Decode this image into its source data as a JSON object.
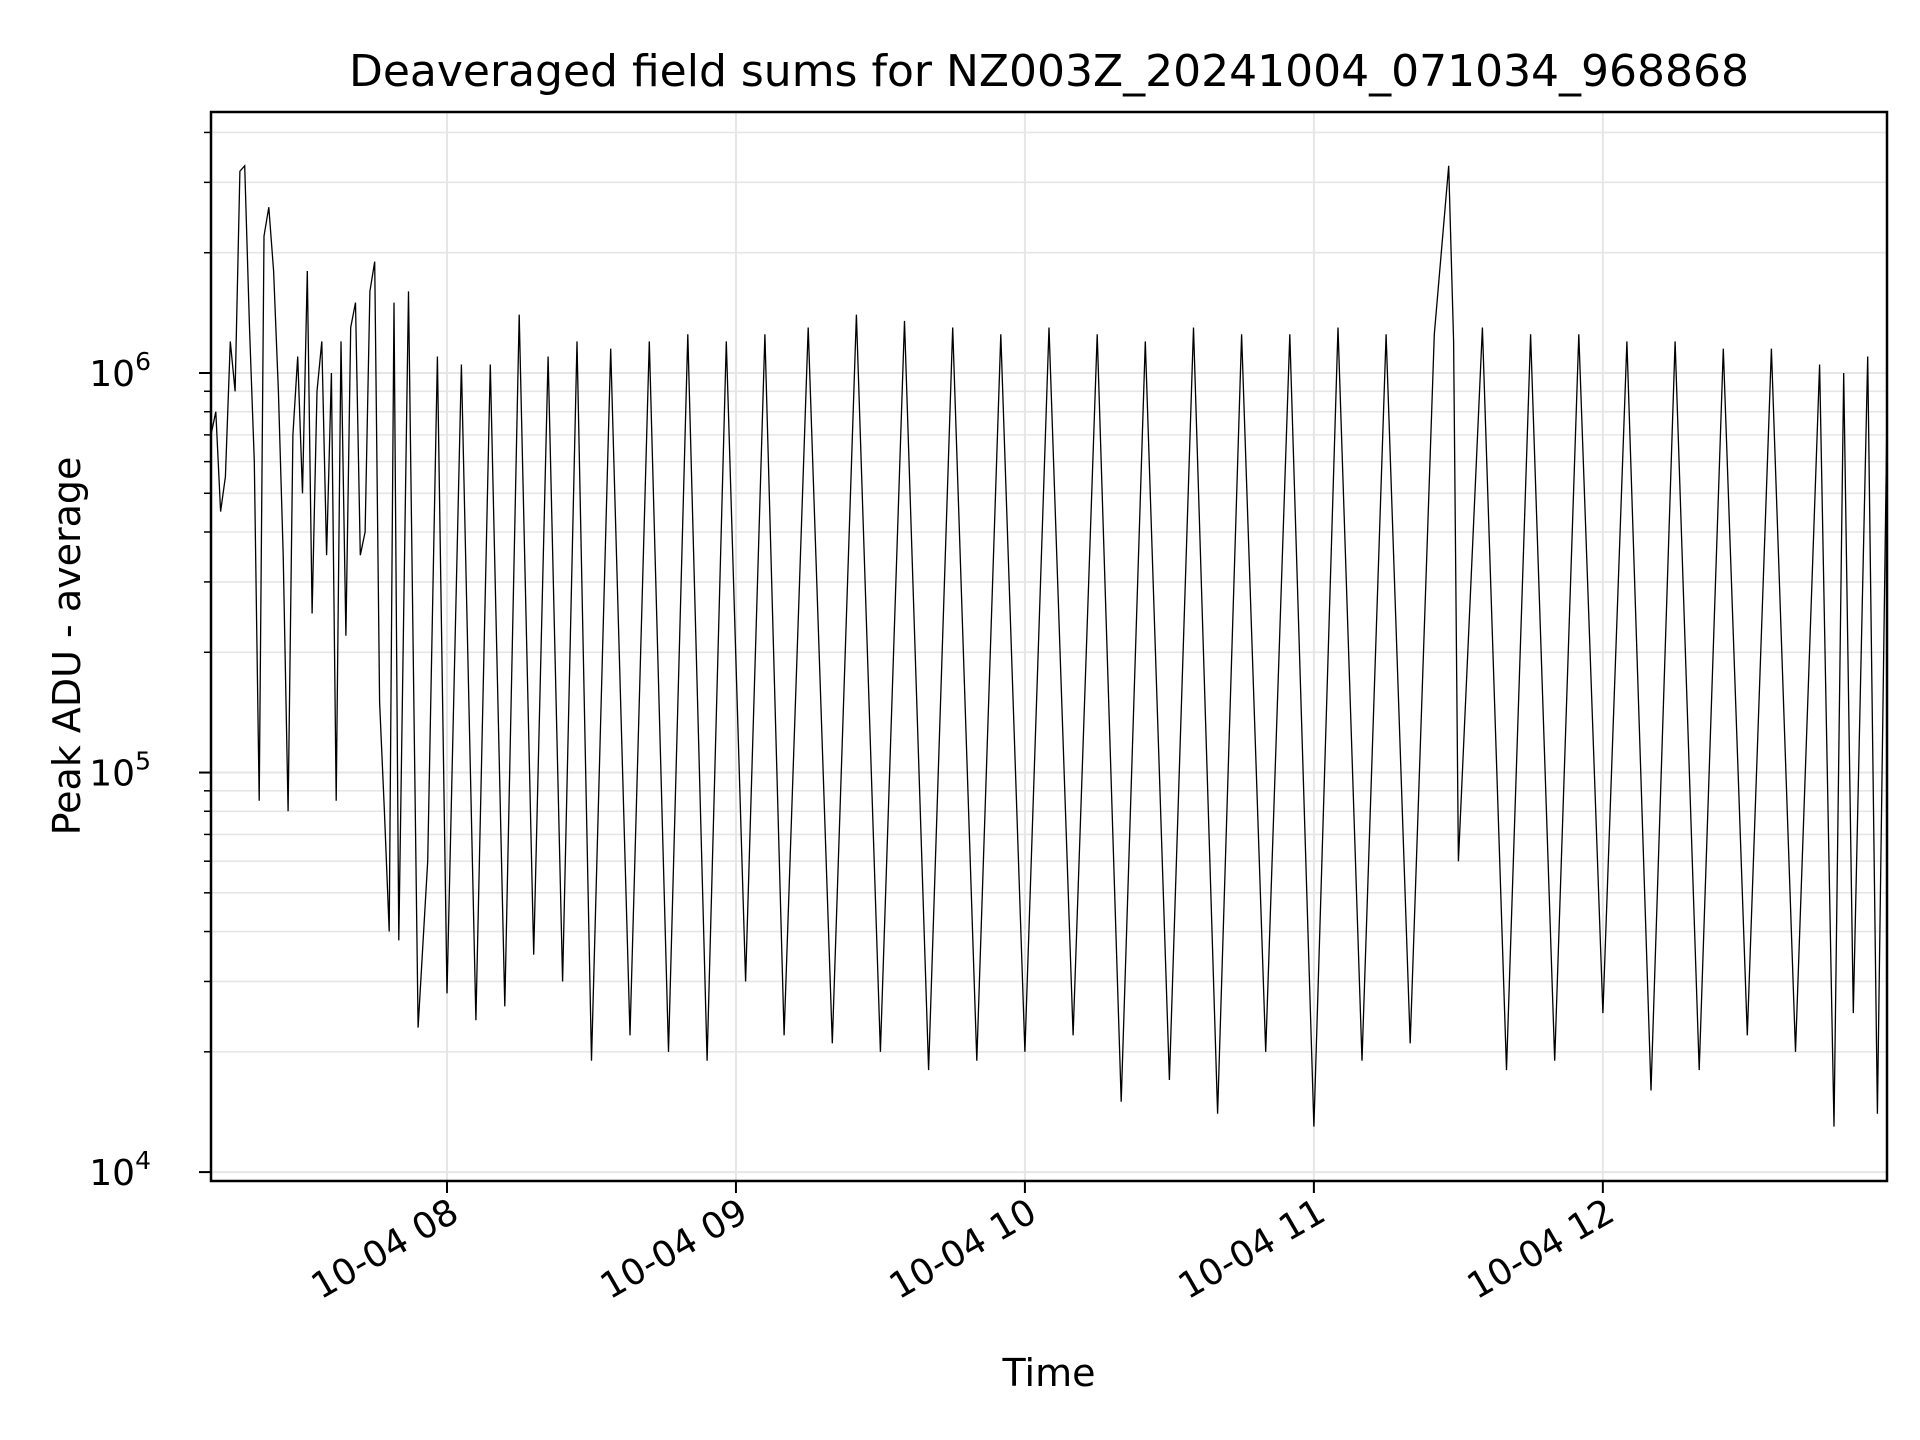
{
  "chart_data": {
    "type": "line",
    "title": "Deaveraged field sums for NZ003Z_20241004_071034_968868",
    "xlabel": "Time",
    "ylabel": "Peak ADU - average",
    "yscale": "log",
    "ylim": [
      9500,
      4500000
    ],
    "xlim": [
      "2024-10-04 07:11",
      "2024-10-04 12:59"
    ],
    "grid": true,
    "line_color": "#000000",
    "grid_color": "#e6e6e6",
    "y_ticks": [
      {
        "value": 10000,
        "base": "10",
        "exp": "4"
      },
      {
        "value": 100000,
        "base": "10",
        "exp": "5"
      },
      {
        "value": 1000000,
        "base": "10",
        "exp": "6"
      }
    ],
    "x_ticks": [
      {
        "value": "2024-10-04 08:00",
        "label": "10-04 08"
      },
      {
        "value": "2024-10-04 09:00",
        "label": "10-04 09"
      },
      {
        "value": "2024-10-04 10:00",
        "label": "10-04 10"
      },
      {
        "value": "2024-10-04 11:00",
        "label": "10-04 11"
      },
      {
        "value": "2024-10-04 12:00",
        "label": "10-04 12"
      }
    ],
    "series": [
      {
        "x": [
          "2024-10-04 07:11",
          "2024-10-04 07:12",
          "2024-10-04 07:13",
          "2024-10-04 07:14",
          "2024-10-04 07:15",
          "2024-10-04 07:16",
          "2024-10-04 07:17",
          "2024-10-04 07:18",
          "2024-10-04 07:19",
          "2024-10-04 07:20",
          "2024-10-04 07:21",
          "2024-10-04 07:22",
          "2024-10-04 07:23",
          "2024-10-04 07:24",
          "2024-10-04 07:25",
          "2024-10-04 07:26",
          "2024-10-04 07:27",
          "2024-10-04 07:28",
          "2024-10-04 07:29",
          "2024-10-04 07:30",
          "2024-10-04 07:31",
          "2024-10-04 07:32",
          "2024-10-04 07:33",
          "2024-10-04 07:34",
          "2024-10-04 07:35",
          "2024-10-04 07:36",
          "2024-10-04 07:37",
          "2024-10-04 07:38",
          "2024-10-04 07:39",
          "2024-10-04 07:40",
          "2024-10-04 07:41",
          "2024-10-04 07:42",
          "2024-10-04 07:43",
          "2024-10-04 07:44",
          "2024-10-04 07:45",
          "2024-10-04 07:46",
          "2024-10-04 07:47",
          "2024-10-04 07:48",
          "2024-10-04 07:49",
          "2024-10-04 07:50",
          "2024-10-04 07:52",
          "2024-10-04 07:54",
          "2024-10-04 07:56",
          "2024-10-04 07:58",
          "2024-10-04 08:00",
          "2024-10-04 08:03",
          "2024-10-04 08:06",
          "2024-10-04 08:09",
          "2024-10-04 08:12",
          "2024-10-04 08:15",
          "2024-10-04 08:18",
          "2024-10-04 08:21",
          "2024-10-04 08:24",
          "2024-10-04 08:27",
          "2024-10-04 08:30",
          "2024-10-04 08:34",
          "2024-10-04 08:38",
          "2024-10-04 08:42",
          "2024-10-04 08:46",
          "2024-10-04 08:50",
          "2024-10-04 08:54",
          "2024-10-04 08:58",
          "2024-10-04 09:02",
          "2024-10-04 09:06",
          "2024-10-04 09:10",
          "2024-10-04 09:15",
          "2024-10-04 09:20",
          "2024-10-04 09:25",
          "2024-10-04 09:30",
          "2024-10-04 09:35",
          "2024-10-04 09:40",
          "2024-10-04 09:45",
          "2024-10-04 09:50",
          "2024-10-04 09:55",
          "2024-10-04 10:00",
          "2024-10-04 10:05",
          "2024-10-04 10:10",
          "2024-10-04 10:15",
          "2024-10-04 10:20",
          "2024-10-04 10:25",
          "2024-10-04 10:30",
          "2024-10-04 10:35",
          "2024-10-04 10:40",
          "2024-10-04 10:45",
          "2024-10-04 10:50",
          "2024-10-04 10:55",
          "2024-10-04 11:00",
          "2024-10-04 11:05",
          "2024-10-04 11:10",
          "2024-10-04 11:15",
          "2024-10-04 11:20",
          "2024-10-04 11:25",
          "2024-10-04 11:28",
          "2024-10-04 11:29",
          "2024-10-04 11:30",
          "2024-10-04 11:35",
          "2024-10-04 11:40",
          "2024-10-04 11:45",
          "2024-10-04 11:50",
          "2024-10-04 11:55",
          "2024-10-04 12:00",
          "2024-10-04 12:05",
          "2024-10-04 12:10",
          "2024-10-04 12:15",
          "2024-10-04 12:20",
          "2024-10-04 12:25",
          "2024-10-04 12:30",
          "2024-10-04 12:35",
          "2024-10-04 12:40",
          "2024-10-04 12:45",
          "2024-10-04 12:48",
          "2024-10-04 12:50",
          "2024-10-04 12:52",
          "2024-10-04 12:55",
          "2024-10-04 12:57",
          "2024-10-04 12:59"
        ],
        "y": [
          700000,
          800000,
          450000,
          550000,
          1200000,
          900000,
          3200000,
          3300000,
          1300000,
          600000,
          85000,
          2200000,
          2600000,
          1800000,
          900000,
          350000,
          80000,
          700000,
          1100000,
          500000,
          1800000,
          250000,
          900000,
          1200000,
          350000,
          1000000,
          85000,
          1200000,
          220000,
          1300000,
          1500000,
          350000,
          400000,
          1600000,
          1900000,
          150000,
          80000,
          40000,
          1500000,
          38000,
          1600000,
          23000,
          60000,
          1100000,
          28000,
          1050000,
          24000,
          1050000,
          26000,
          1400000,
          35000,
          1100000,
          30000,
          1200000,
          19000,
          1150000,
          22000,
          1200000,
          20000,
          1250000,
          19000,
          1200000,
          30000,
          1250000,
          22000,
          1300000,
          21000,
          1400000,
          20000,
          1350000,
          18000,
          1300000,
          19000,
          1250000,
          20000,
          1300000,
          22000,
          1250000,
          15000,
          1200000,
          17000,
          1300000,
          14000,
          1250000,
          20000,
          1250000,
          13000,
          1300000,
          19000,
          1250000,
          21000,
          1250000,
          3300000,
          1200000,
          60000,
          1300000,
          18000,
          1250000,
          19000,
          1250000,
          25000,
          1200000,
          16000,
          1200000,
          18000,
          1150000,
          22000,
          1150000,
          20000,
          1050000,
          13000,
          1000000,
          25000,
          1100000,
          14000,
          800000
        ]
      }
    ]
  }
}
